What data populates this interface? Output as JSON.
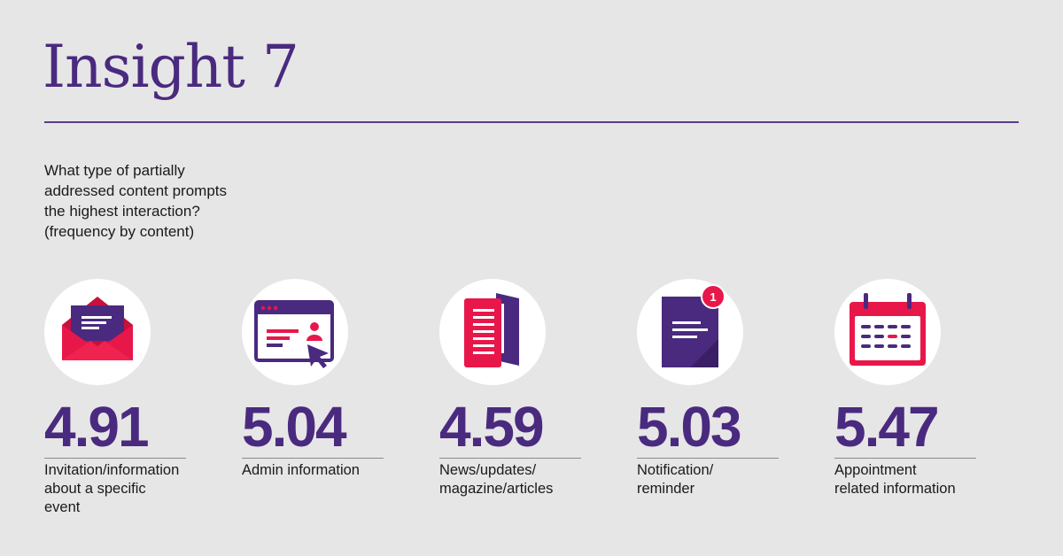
{
  "title": "Insight 7",
  "question": {
    "lines": [
      "What type of partially",
      "addressed content prompts",
      "the highest interaction?",
      "(frequency by content)"
    ]
  },
  "colors": {
    "background": "#e6e6e6",
    "purple": "#4a2a7f",
    "accent": "#e8174a",
    "white": "#ffffff"
  },
  "cards": [
    {
      "icon": "envelope-icon",
      "value": "4.91",
      "label_lines": [
        "Invitation/information",
        "about a specific",
        "event"
      ]
    },
    {
      "icon": "admin-window-icon",
      "value": "5.04",
      "label_lines": [
        "Admin information"
      ]
    },
    {
      "icon": "magazine-icon",
      "value": "4.59",
      "label_lines": [
        "News/updates/",
        "magazine/articles"
      ]
    },
    {
      "icon": "notification-document-icon",
      "value": "5.03",
      "label_lines": [
        "Notification/",
        "reminder"
      ],
      "badge": "1"
    },
    {
      "icon": "calendar-icon",
      "value": "5.47",
      "label_lines": [
        "Appointment",
        "related information"
      ]
    }
  ]
}
